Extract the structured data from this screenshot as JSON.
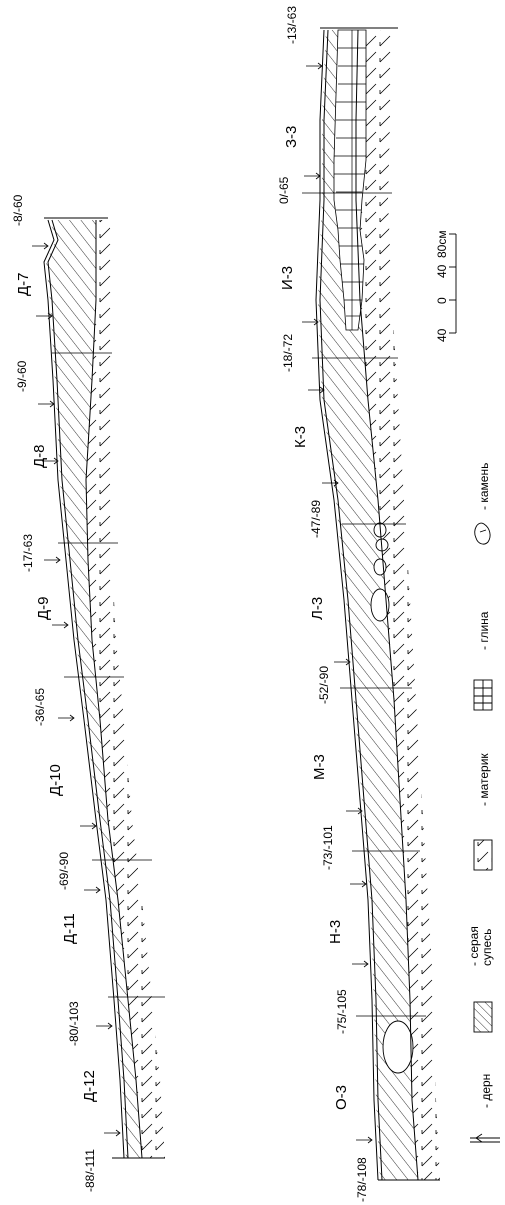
{
  "left_profile": {
    "sections": [
      "Д-7",
      "Д-8",
      "Д-9",
      "Д-10",
      "Д-11",
      "Д-12"
    ],
    "marks": [
      "-8/-60",
      "-9/-60",
      "-17/-63",
      "-36/-65",
      "-69/-90",
      "-80/-103",
      "-88/-111"
    ]
  },
  "right_profile": {
    "sections": [
      "З-3",
      "И-3",
      "К-3",
      "Л-3",
      "М-3",
      "Н-3",
      "О-3"
    ],
    "marks": [
      "-13/-63",
      "0/-65",
      "-18/-72",
      "-47/-89",
      "-52/-90",
      "-73/-101",
      "-75/-105",
      "-78/-108"
    ]
  },
  "scale": {
    "unit": "80см",
    "ticks": [
      "40",
      "0",
      "40"
    ]
  },
  "legend": {
    "turf": "- дерн",
    "gray_sandy_loam_1": "- серая",
    "gray_sandy_loam_2": "супесь",
    "bedrock": "- материк",
    "clay": "- глина",
    "stone": "- камень"
  }
}
